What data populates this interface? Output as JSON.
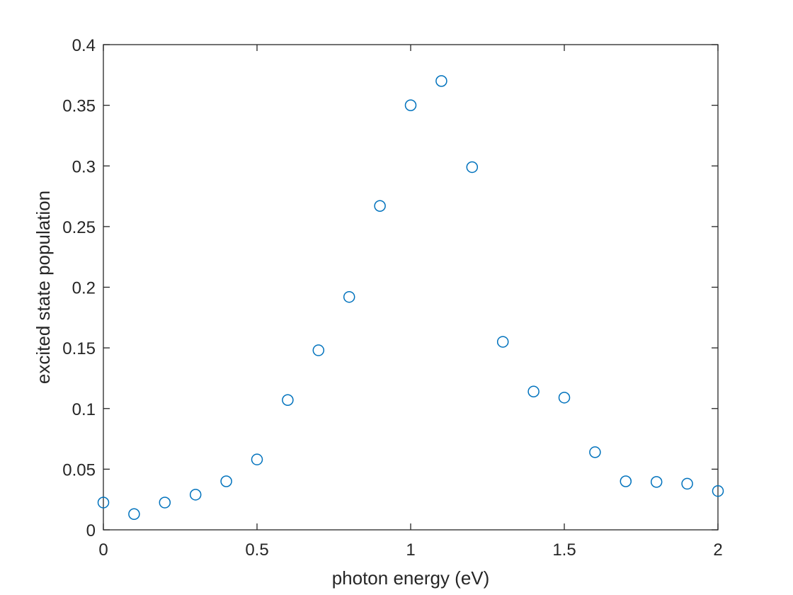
{
  "chart_data": {
    "type": "scatter",
    "title": "",
    "xlabel": "photon energy (eV)",
    "ylabel": "excited state population",
    "xlim": [
      0,
      2
    ],
    "ylim": [
      0,
      0.4
    ],
    "xticks": [
      0,
      0.5,
      1,
      1.5,
      2
    ],
    "xtick_labels": [
      "0",
      "0.5",
      "1",
      "1.5",
      "2"
    ],
    "yticks": [
      0,
      0.05,
      0.1,
      0.15,
      0.2,
      0.25,
      0.3,
      0.35,
      0.4
    ],
    "ytick_labels": [
      "0",
      "0.05",
      "0.1",
      "0.15",
      "0.2",
      "0.25",
      "0.3",
      "0.35",
      "0.4"
    ],
    "grid": false,
    "marker": "open-circle",
    "color": "#0072BD",
    "series": [
      {
        "x": [
          0,
          0.1,
          0.2,
          0.3,
          0.4,
          0.5,
          0.6,
          0.7,
          0.8,
          0.9,
          1.0,
          1.1,
          1.2,
          1.3,
          1.4,
          1.5,
          1.6,
          1.7,
          1.8,
          1.9,
          2.0
        ],
        "y": [
          0.0225,
          0.013,
          0.0225,
          0.029,
          0.04,
          0.058,
          0.107,
          0.148,
          0.192,
          0.267,
          0.35,
          0.37,
          0.299,
          0.155,
          0.114,
          0.109,
          0.064,
          0.04,
          0.0395,
          0.038,
          0.032
        ]
      }
    ]
  }
}
